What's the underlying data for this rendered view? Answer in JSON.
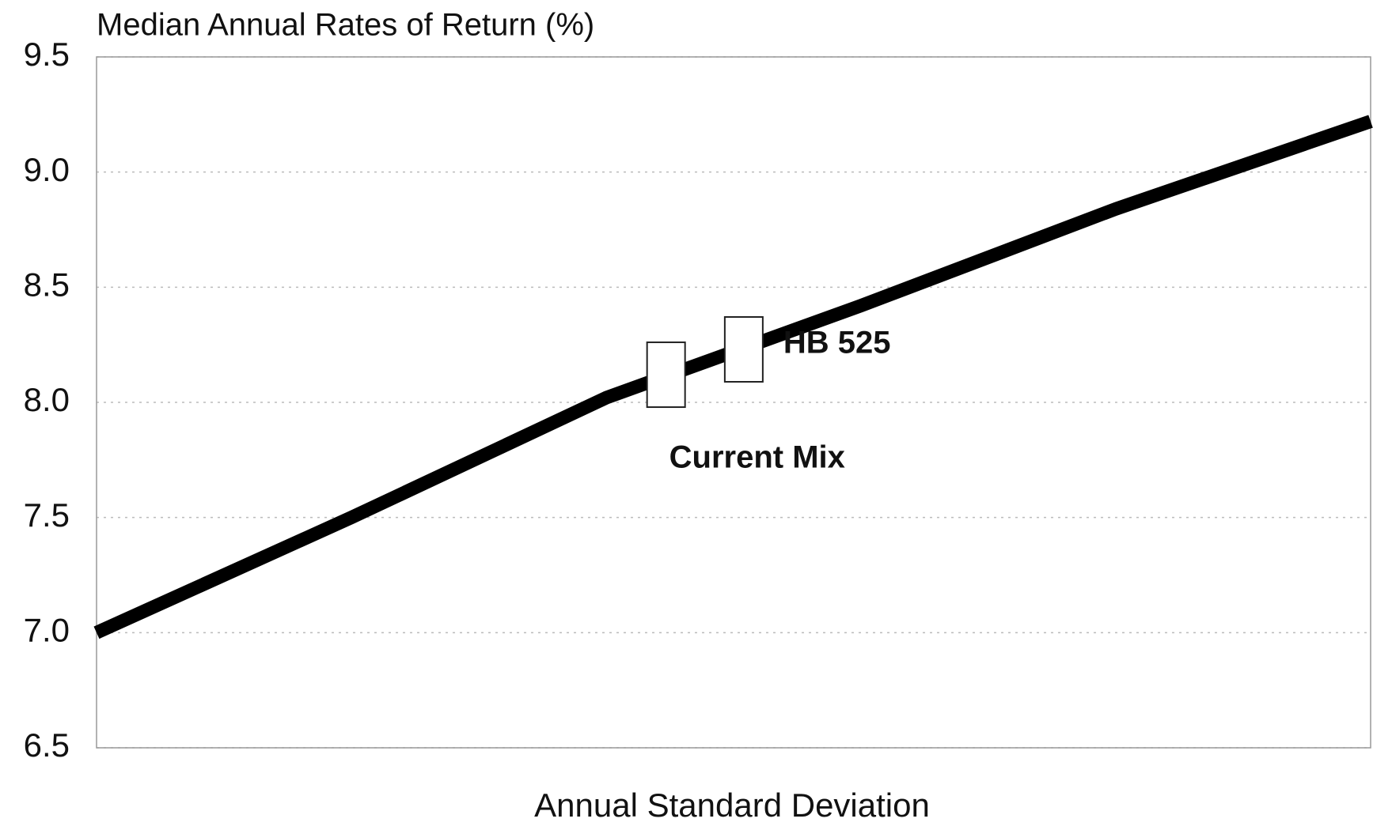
{
  "chart_data": {
    "type": "line",
    "title": "Median Annual Rates of Return (%)",
    "x_label": "Annual Standard Deviation",
    "x": [
      0,
      0.2,
      0.4,
      0.6,
      0.8,
      1.0
    ],
    "series": [
      {
        "color": "#000000",
        "values": [
          7.0,
          7.5,
          8.02,
          8.42,
          8.84,
          9.22
        ]
      }
    ],
    "points": [
      {
        "label": "Current Mix",
        "x": 0.447,
        "y": 8.12
      },
      {
        "label": "HB 525",
        "x": 0.508,
        "y": 8.23
      }
    ],
    "xlim": [
      0,
      1
    ],
    "ylim": [
      6.5,
      9.5
    ],
    "yticks": [
      {
        "value": 6.5,
        "label": "6.5"
      },
      {
        "value": 7.0,
        "label": "7.0"
      },
      {
        "value": 7.5,
        "label": "7.5"
      },
      {
        "value": 8.0,
        "label": "8.0"
      },
      {
        "value": 8.5,
        "label": "8.5"
      },
      {
        "value": 9.0,
        "label": "9.0"
      },
      {
        "value": 9.5,
        "label": "9.5"
      }
    ],
    "grid": true
  }
}
